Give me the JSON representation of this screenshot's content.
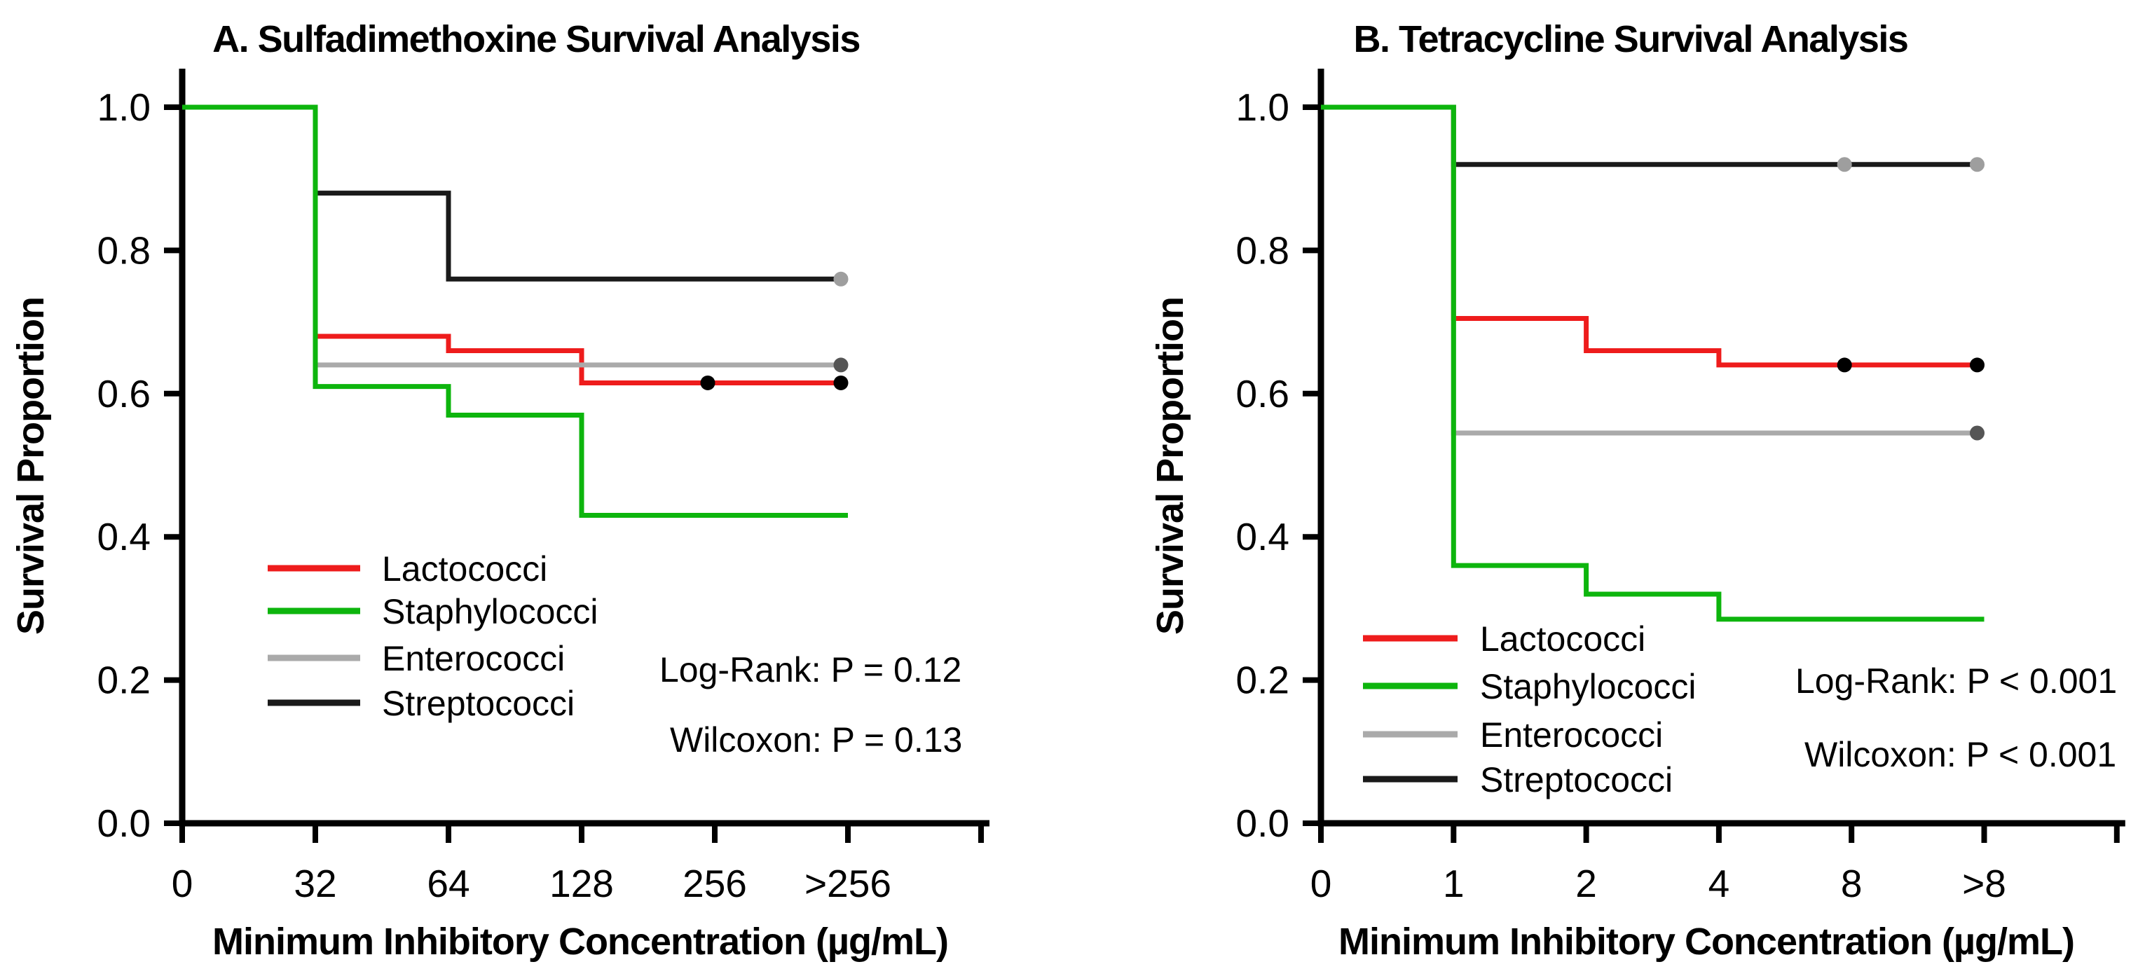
{
  "page": {
    "background": "#ffffff",
    "text_color": "#000000"
  },
  "colors": {
    "lactococci": "#ee1c1c",
    "staphylococci": "#0db50d",
    "enterococci": "#aaaaaa",
    "streptococci": "#1a1a1a",
    "censor_black": "#000000",
    "censor_dark_gray": "#555555",
    "censor_light_gray": "#9e9e9e",
    "axis": "#000000"
  },
  "chart_data": [
    {
      "panel": "A",
      "type": "line",
      "subtype": "kaplan-meier-step",
      "title": "A. Sulfadimethoxine Survival Analysis",
      "xlabel": "Minimum Inhibitory Concentration (µg/mL)",
      "ylabel": "Survival Proportion",
      "x_categories": [
        "0",
        "32",
        "64",
        "128",
        "256",
        ">256"
      ],
      "x_axis_extra_unlabeled_tick": true,
      "y_ticks": [
        0.0,
        0.2,
        0.4,
        0.6,
        0.8,
        1.0
      ],
      "y_tick_labels": [
        "0.0",
        "0.2",
        "0.4",
        "0.6",
        "0.8",
        "1.0"
      ],
      "ylim": [
        0.0,
        1.0
      ],
      "grid": false,
      "legend_position": "inside-lower-left",
      "legend": [
        "Lactococci",
        "Staphylococci",
        "Enterococci",
        "Streptococci"
      ],
      "stats": [
        "Log-Rank: P = 0.12",
        "Wilcoxon: P = 0.13"
      ],
      "series": [
        {
          "name": "Lactococci",
          "color": "#ee1c1c",
          "steps": [
            [
              0,
              1.0
            ],
            [
              1,
              0.68
            ],
            [
              2,
              0.66
            ],
            [
              3,
              0.615
            ],
            [
              5,
              0.615
            ]
          ],
          "censor_dots": [
            {
              "x": 4,
              "y": 0.615,
              "color": "#000000"
            },
            {
              "x": 5,
              "y": 0.615,
              "color": "#000000"
            }
          ]
        },
        {
          "name": "Staphylococci",
          "color": "#0db50d",
          "steps": [
            [
              0,
              1.0
            ],
            [
              1,
              0.61
            ],
            [
              2,
              0.57
            ],
            [
              3,
              0.43
            ],
            [
              5,
              0.43
            ]
          ],
          "censor_dots": []
        },
        {
          "name": "Enterococci",
          "color": "#aaaaaa",
          "steps": [
            [
              0,
              1.0
            ],
            [
              1,
              0.64
            ],
            [
              5,
              0.64
            ]
          ],
          "censor_dots": [
            {
              "x": 5,
              "y": 0.64,
              "color": "#555555"
            }
          ]
        },
        {
          "name": "Streptococci",
          "color": "#1a1a1a",
          "steps": [
            [
              0,
              1.0
            ],
            [
              1,
              0.88
            ],
            [
              2,
              0.76
            ],
            [
              5,
              0.76
            ]
          ],
          "censor_dots": [
            {
              "x": 5,
              "y": 0.76,
              "color": "#9e9e9e"
            }
          ]
        }
      ]
    },
    {
      "panel": "B",
      "type": "line",
      "subtype": "kaplan-meier-step",
      "title": "B. Tetracycline Survival Analysis",
      "xlabel": "Minimum Inhibitory Concentration (µg/mL)",
      "ylabel": "Survival Proportion",
      "x_categories": [
        "0",
        "1",
        "2",
        "4",
        "8",
        ">8"
      ],
      "x_axis_extra_unlabeled_tick": true,
      "y_ticks": [
        0.0,
        0.2,
        0.4,
        0.6,
        0.8,
        1.0
      ],
      "y_tick_labels": [
        "0.0",
        "0.2",
        "0.4",
        "0.6",
        "0.8",
        "1.0"
      ],
      "ylim": [
        0.0,
        1.0
      ],
      "grid": false,
      "legend_position": "inside-lower-left",
      "legend": [
        "Lactococci",
        "Staphylococci",
        "Enterococci",
        "Streptococci"
      ],
      "stats": [
        "Log-Rank: P < 0.001",
        "Wilcoxon: P < 0.001"
      ],
      "series": [
        {
          "name": "Lactococci",
          "color": "#ee1c1c",
          "steps": [
            [
              0,
              1.0
            ],
            [
              1,
              0.705
            ],
            [
              2,
              0.66
            ],
            [
              3,
              0.64
            ],
            [
              5,
              0.64
            ]
          ],
          "censor_dots": [
            {
              "x": 4,
              "y": 0.64,
              "color": "#000000"
            },
            {
              "x": 5,
              "y": 0.64,
              "color": "#000000"
            }
          ]
        },
        {
          "name": "Staphylococci",
          "color": "#0db50d",
          "steps": [
            [
              0,
              1.0
            ],
            [
              1,
              0.36
            ],
            [
              2,
              0.32
            ],
            [
              3,
              0.285
            ],
            [
              5,
              0.285
            ]
          ],
          "censor_dots": []
        },
        {
          "name": "Enterococci",
          "color": "#aaaaaa",
          "steps": [
            [
              0,
              1.0
            ],
            [
              1,
              0.545
            ],
            [
              5,
              0.545
            ]
          ],
          "censor_dots": [
            {
              "x": 5,
              "y": 0.545,
              "color": "#555555"
            }
          ]
        },
        {
          "name": "Streptococci",
          "color": "#1a1a1a",
          "steps": [
            [
              0,
              1.0
            ],
            [
              1,
              0.92
            ],
            [
              5,
              0.92
            ]
          ],
          "censor_dots": [
            {
              "x": 4,
              "y": 0.92,
              "color": "#9e9e9e"
            },
            {
              "x": 5,
              "y": 0.92,
              "color": "#9e9e9e"
            }
          ]
        }
      ]
    }
  ]
}
